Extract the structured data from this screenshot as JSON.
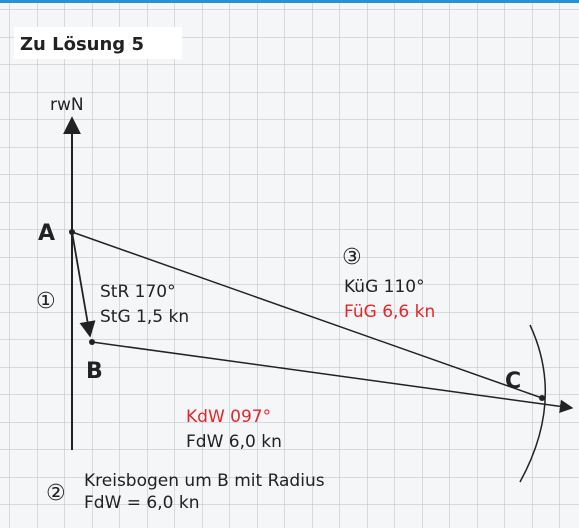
{
  "header": {
    "title": "Zu Lösung 5"
  },
  "north_label": "rwN",
  "points": {
    "A": "A",
    "B": "B",
    "C": "C"
  },
  "current": {
    "marker": "①",
    "course": "StR 170°",
    "speed": "StG 1,5 kn"
  },
  "ground": {
    "marker": "③",
    "course": "KüG 110°",
    "speed": "FüG 6,6 kn"
  },
  "water": {
    "course": "KdW 097°",
    "speed": "FdW 6,0 kn"
  },
  "note": {
    "marker": "②",
    "line1": "Kreisbogen um B mit Radius",
    "line2": "FdW = 6,0 kn"
  }
}
